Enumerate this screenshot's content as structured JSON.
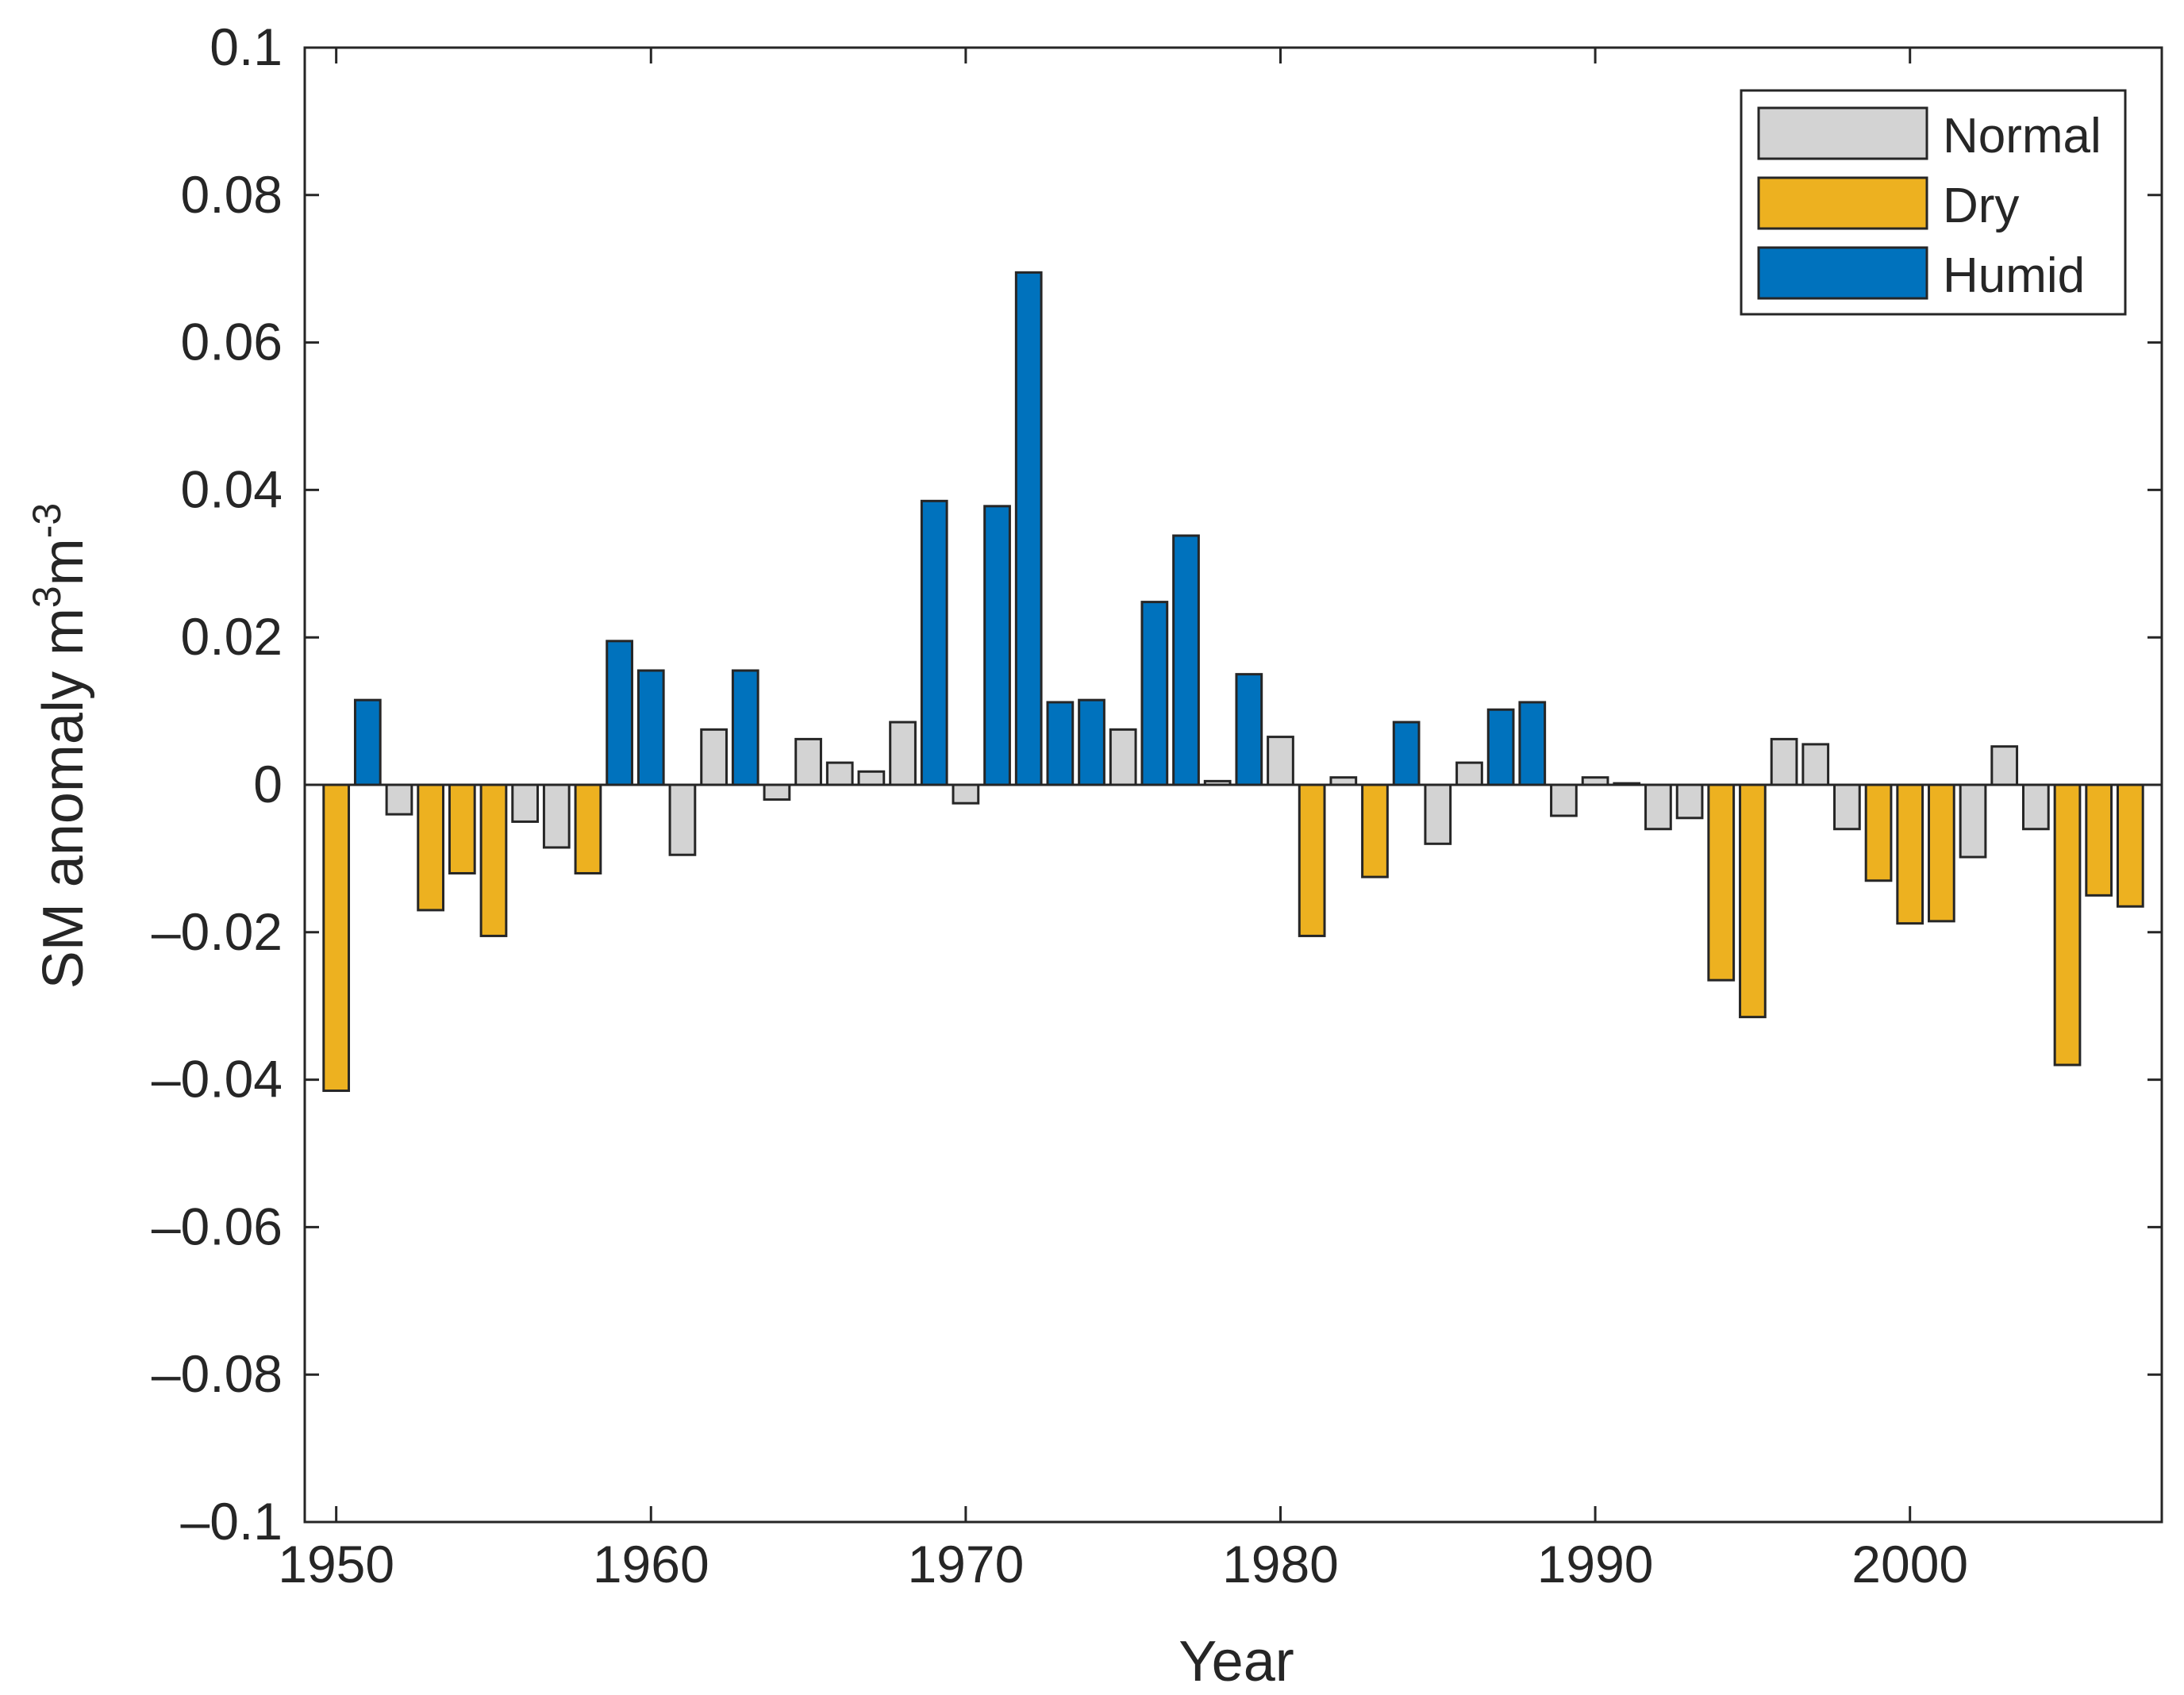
{
  "chart_data": {
    "type": "bar",
    "title": "",
    "xlabel": "Year",
    "ylabel": "SM anomaly m3m-3",
    "ylabel_parts": {
      "base": "SM anomaly m",
      "sup1": "3",
      "mid": "m",
      "sup2": "-3"
    },
    "xlim": [
      1949,
      2008
    ],
    "ylim": [
      -0.1,
      0.1
    ],
    "x_ticks": [
      1950,
      1960,
      1970,
      1980,
      1990,
      2000
    ],
    "x_tick_labels": [
      "1950",
      "1960",
      "1970",
      "1980",
      "1990",
      "2000"
    ],
    "y_ticks": [
      0.1,
      0.08,
      0.06,
      0.04,
      0.02,
      0,
      -0.02,
      -0.04,
      -0.06,
      -0.08,
      -0.1
    ],
    "y_tick_labels": [
      "0.1",
      "0.08",
      "0.06",
      "0.04",
      "0.02",
      "0",
      "–0.02",
      "–0.04",
      "–0.06",
      "–0.08",
      "–0.1"
    ],
    "grid": false,
    "legend_position": "top-right",
    "categories_legend": [
      {
        "key": "normal",
        "label": "Normal",
        "color": "#D3D3D3"
      },
      {
        "key": "dry",
        "label": "Dry",
        "color": "#EDB120"
      },
      {
        "key": "humid",
        "label": "Humid",
        "color": "#0072BD"
      }
    ],
    "bars": [
      {
        "year": 1950,
        "value": -0.0415,
        "class": "dry"
      },
      {
        "year": 1951,
        "value": 0.0115,
        "class": "humid"
      },
      {
        "year": 1952,
        "value": -0.004,
        "class": "normal"
      },
      {
        "year": 1953,
        "value": -0.017,
        "class": "dry"
      },
      {
        "year": 1954,
        "value": -0.012,
        "class": "dry"
      },
      {
        "year": 1955,
        "value": -0.0205,
        "class": "dry"
      },
      {
        "year": 1956,
        "value": -0.005,
        "class": "normal"
      },
      {
        "year": 1957,
        "value": -0.0085,
        "class": "normal"
      },
      {
        "year": 1958,
        "value": -0.012,
        "class": "dry"
      },
      {
        "year": 1959,
        "value": 0.0195,
        "class": "humid"
      },
      {
        "year": 1960,
        "value": 0.0155,
        "class": "humid"
      },
      {
        "year": 1961,
        "value": -0.0095,
        "class": "normal"
      },
      {
        "year": 1962,
        "value": 0.0075,
        "class": "normal"
      },
      {
        "year": 1963,
        "value": 0.0155,
        "class": "humid"
      },
      {
        "year": 1964,
        "value": -0.002,
        "class": "normal"
      },
      {
        "year": 1965,
        "value": 0.0062,
        "class": "normal"
      },
      {
        "year": 1966,
        "value": 0.003,
        "class": "normal"
      },
      {
        "year": 1967,
        "value": 0.0018,
        "class": "normal"
      },
      {
        "year": 1968,
        "value": 0.0085,
        "class": "normal"
      },
      {
        "year": 1969,
        "value": 0.0385,
        "class": "humid"
      },
      {
        "year": 1970,
        "value": -0.0025,
        "class": "normal"
      },
      {
        "year": 1971,
        "value": 0.0378,
        "class": "humid"
      },
      {
        "year": 1972,
        "value": 0.0695,
        "class": "humid"
      },
      {
        "year": 1973,
        "value": 0.0112,
        "class": "humid"
      },
      {
        "year": 1974,
        "value": 0.0115,
        "class": "humid"
      },
      {
        "year": 1975,
        "value": 0.0075,
        "class": "normal"
      },
      {
        "year": 1976,
        "value": 0.0248,
        "class": "humid"
      },
      {
        "year": 1977,
        "value": 0.0338,
        "class": "humid"
      },
      {
        "year": 1978,
        "value": 0.0005,
        "class": "normal"
      },
      {
        "year": 1979,
        "value": 0.015,
        "class": "humid"
      },
      {
        "year": 1980,
        "value": 0.0065,
        "class": "normal"
      },
      {
        "year": 1981,
        "value": -0.0205,
        "class": "dry"
      },
      {
        "year": 1982,
        "value": 0.001,
        "class": "normal"
      },
      {
        "year": 1983,
        "value": -0.0125,
        "class": "dry"
      },
      {
        "year": 1984,
        "value": 0.0085,
        "class": "humid"
      },
      {
        "year": 1985,
        "value": -0.008,
        "class": "normal"
      },
      {
        "year": 1986,
        "value": 0.003,
        "class": "normal"
      },
      {
        "year": 1987,
        "value": 0.0102,
        "class": "humid"
      },
      {
        "year": 1988,
        "value": 0.0112,
        "class": "humid"
      },
      {
        "year": 1989,
        "value": -0.0042,
        "class": "normal"
      },
      {
        "year": 1990,
        "value": 0.001,
        "class": "normal"
      },
      {
        "year": 1991,
        "value": 0.0002,
        "class": "normal"
      },
      {
        "year": 1992,
        "value": -0.006,
        "class": "normal"
      },
      {
        "year": 1993,
        "value": -0.0045,
        "class": "normal"
      },
      {
        "year": 1994,
        "value": -0.0265,
        "class": "dry"
      },
      {
        "year": 1995,
        "value": -0.0315,
        "class": "dry"
      },
      {
        "year": 1996,
        "value": 0.0062,
        "class": "normal"
      },
      {
        "year": 1997,
        "value": 0.0055,
        "class": "normal"
      },
      {
        "year": 1998,
        "value": -0.006,
        "class": "normal"
      },
      {
        "year": 1999,
        "value": -0.013,
        "class": "dry"
      },
      {
        "year": 2000,
        "value": -0.0188,
        "class": "dry"
      },
      {
        "year": 2001,
        "value": -0.0185,
        "class": "dry"
      },
      {
        "year": 2002,
        "value": -0.0098,
        "class": "normal"
      },
      {
        "year": 2003,
        "value": 0.0052,
        "class": "normal"
      },
      {
        "year": 2004,
        "value": -0.006,
        "class": "normal"
      },
      {
        "year": 2005,
        "value": -0.038,
        "class": "dry"
      },
      {
        "year": 2006,
        "value": -0.015,
        "class": "dry"
      },
      {
        "year": 2007,
        "value": -0.0165,
        "class": "dry"
      }
    ]
  }
}
